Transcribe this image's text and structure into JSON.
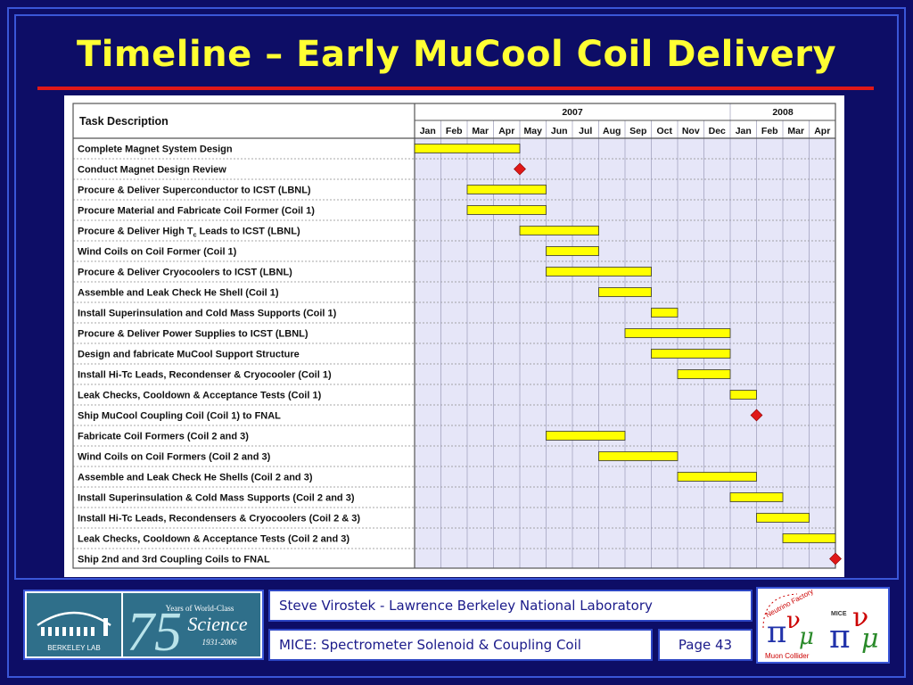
{
  "slide": {
    "title": "Timeline – Early MuCool Coil Delivery",
    "footer": {
      "author": "Steve Virostek - Lawrence Berkeley National Laboratory",
      "project": "MICE: Spectrometer Solenoid & Coupling Coil",
      "page": "Page 43"
    },
    "logos": {
      "lab_name": "BERKELEY LAB",
      "anniversary_number": "75",
      "anniversary_line1": "Years of World-Class",
      "anniversary_line2": "Science",
      "anniversary_years": "1931-2006",
      "nfmc_top": "Neutrino Factory",
      "nfmc_bottom": "Muon Collider",
      "mice": "MICE"
    },
    "colors": {
      "background": "#0d0d66",
      "title": "#ffff33",
      "rule": "#e01818",
      "bar": "#ffff00",
      "milestone": "#e01818",
      "grid_bg": "#e6e6f8"
    }
  },
  "chart_data": {
    "type": "gantt",
    "header_label": "Task Description",
    "years": [
      {
        "label": "2007",
        "start": 0,
        "span": 12
      },
      {
        "label": "2008",
        "start": 12,
        "span": 4
      }
    ],
    "months": [
      "Jan",
      "Feb",
      "Mar",
      "Apr",
      "May",
      "Jun",
      "Jul",
      "Aug",
      "Sep",
      "Oct",
      "Nov",
      "Dec",
      "Jan",
      "Feb",
      "Mar",
      "Apr"
    ],
    "tasks": [
      {
        "name": "Complete Magnet System Design",
        "start": 0,
        "end": 4
      },
      {
        "name": "Conduct Magnet Design Review",
        "milestone": 4
      },
      {
        "name": "Procure & Deliver Superconductor to ICST (LBNL)",
        "start": 2,
        "end": 5
      },
      {
        "name": "Procure Material and Fabricate Coil Former (Coil 1)",
        "start": 2,
        "end": 5
      },
      {
        "name": "Procure & Deliver High T",
        "sub": "c",
        "suffix": " Leads to ICST (LBNL)",
        "start": 4,
        "end": 7
      },
      {
        "name": "Wind Coils on Coil Former (Coil 1)",
        "start": 5,
        "end": 7
      },
      {
        "name": "Procure & Deliver Cryocoolers to ICST (LBNL)",
        "start": 5,
        "end": 9
      },
      {
        "name": "Assemble and Leak Check He Shell (Coil 1)",
        "start": 7,
        "end": 9
      },
      {
        "name": "Install Superinsulation and Cold Mass Supports (Coil 1)",
        "start": 9,
        "end": 10
      },
      {
        "name": "Procure & Deliver Power Supplies to ICST (LBNL)",
        "start": 8,
        "end": 12
      },
      {
        "name": "Design and fabricate MuCool Support Structure",
        "start": 9,
        "end": 12
      },
      {
        "name": "Install Hi-Tc Leads, Recondenser & Cryocooler (Coil 1)",
        "start": 10,
        "end": 12
      },
      {
        "name": "Leak Checks, Cooldown & Acceptance Tests (Coil 1)",
        "start": 12,
        "end": 13
      },
      {
        "name": "Ship MuCool Coupling Coil (Coil 1) to FNAL",
        "milestone": 13
      },
      {
        "name": "Fabricate Coil Formers (Coil 2 and 3)",
        "start": 5,
        "end": 8
      },
      {
        "name": "Wind Coils on Coil Formers (Coil 2 and 3)",
        "start": 7,
        "end": 10
      },
      {
        "name": "Assemble and Leak Check He Shells (Coil 2 and 3)",
        "start": 10,
        "end": 13
      },
      {
        "name": "Install Superinsulation & Cold Mass Supports (Coil 2 and 3)",
        "start": 12,
        "end": 14
      },
      {
        "name": "Install Hi-Tc Leads, Recondensers & Cryocoolers (Coil 2 & 3)",
        "start": 13,
        "end": 15
      },
      {
        "name": "Leak Checks, Cooldown & Acceptance Tests (Coil 2 and 3)",
        "start": 14,
        "end": 16
      },
      {
        "name": "Ship 2nd and 3rd Coupling Coils to FNAL",
        "milestone": 16
      }
    ]
  }
}
